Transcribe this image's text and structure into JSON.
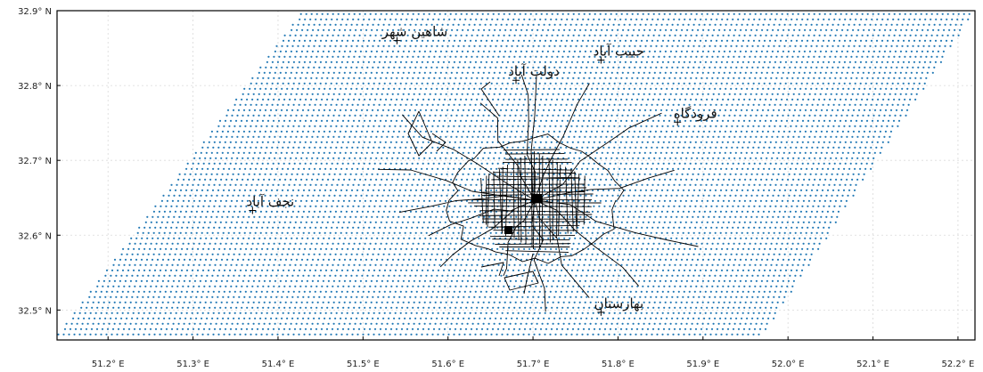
{
  "map": {
    "x_axis": {
      "unit": "E",
      "range": [
        51.14,
        52.22
      ],
      "ticks": [
        51.2,
        51.3,
        51.4,
        51.5,
        51.6,
        51.7,
        51.8,
        51.9,
        52.0,
        52.1,
        52.2
      ],
      "tick_labels": [
        "51.2° E",
        "51.3° E",
        "51.4° E",
        "51.5° E",
        "51.6° E",
        "51.7° E",
        "51.8° E",
        "51.9° E",
        "52.0° E",
        "52.1° E",
        "52.2° E"
      ]
    },
    "y_axis": {
      "unit": "N",
      "range": [
        32.46,
        32.9
      ],
      "ticks": [
        32.5,
        32.6,
        32.7,
        32.8,
        32.9
      ],
      "tick_labels": [
        "32.5° N",
        "32.6° N",
        "32.7° N",
        "32.8° N",
        "32.9° N"
      ]
    },
    "grid": true,
    "dot_color": "#1f77b4",
    "line_color": "#000000",
    "sample_region": {
      "shape": "parallelogram",
      "corners": [
        [
          51.14,
          32.465
        ],
        [
          51.97,
          32.465
        ],
        [
          52.22,
          32.9
        ],
        [
          51.43,
          32.9
        ]
      ]
    },
    "places": [
      {
        "name": "شاهین شهر",
        "lon": 51.54,
        "lat": 32.86
      },
      {
        "name": "حبیب آباد",
        "lon": 51.78,
        "lat": 32.834
      },
      {
        "name": "دولت آباد",
        "lon": 51.68,
        "lat": 32.807
      },
      {
        "name": "فرودگاه",
        "lon": 51.87,
        "lat": 32.751
      },
      {
        "name": "نجف آباد",
        "lon": 51.37,
        "lat": 32.633
      },
      {
        "name": "بهارستان",
        "lon": 51.78,
        "lat": 32.497
      }
    ]
  }
}
